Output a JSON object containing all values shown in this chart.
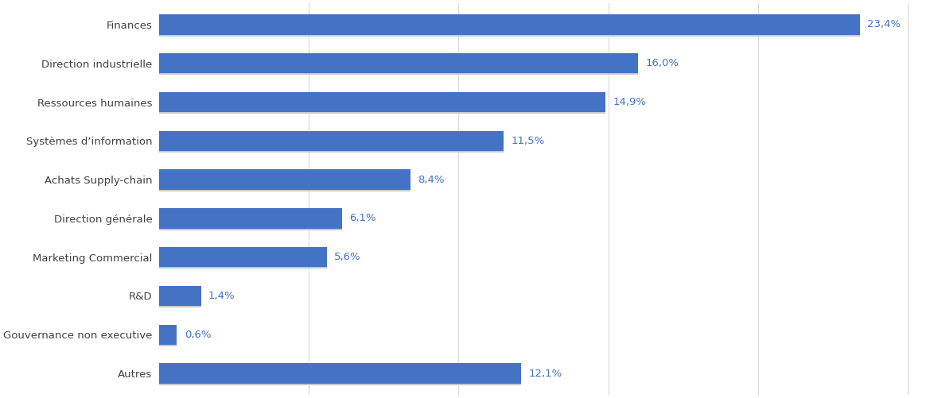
{
  "categories": [
    "Finances",
    "Direction industrielle",
    "Ressources humaines",
    "Systèmes d’information",
    "Achats Supply-chain",
    "Direction générale",
    "Marketing Commercial",
    "R&D",
    "Gouvernance non executive",
    "Autres"
  ],
  "values": [
    23.4,
    16.0,
    14.9,
    11.5,
    8.4,
    6.1,
    5.6,
    1.4,
    0.6,
    12.1
  ],
  "labels": [
    "23,4%",
    "16,0%",
    "14,9%",
    "11,5%",
    "8,4%",
    "6,1%",
    "5,6%",
    "1,4%",
    "0,6%",
    "12,1%"
  ],
  "bar_color": "#4472C4",
  "background_color": "#FFFFFF",
  "label_color": "#4472C4",
  "tick_label_color": "#404040",
  "grid_color": "#D9D9D9",
  "label_fontsize": 9.5,
  "tick_fontsize": 9.5,
  "xlim": [
    0,
    25.5
  ]
}
